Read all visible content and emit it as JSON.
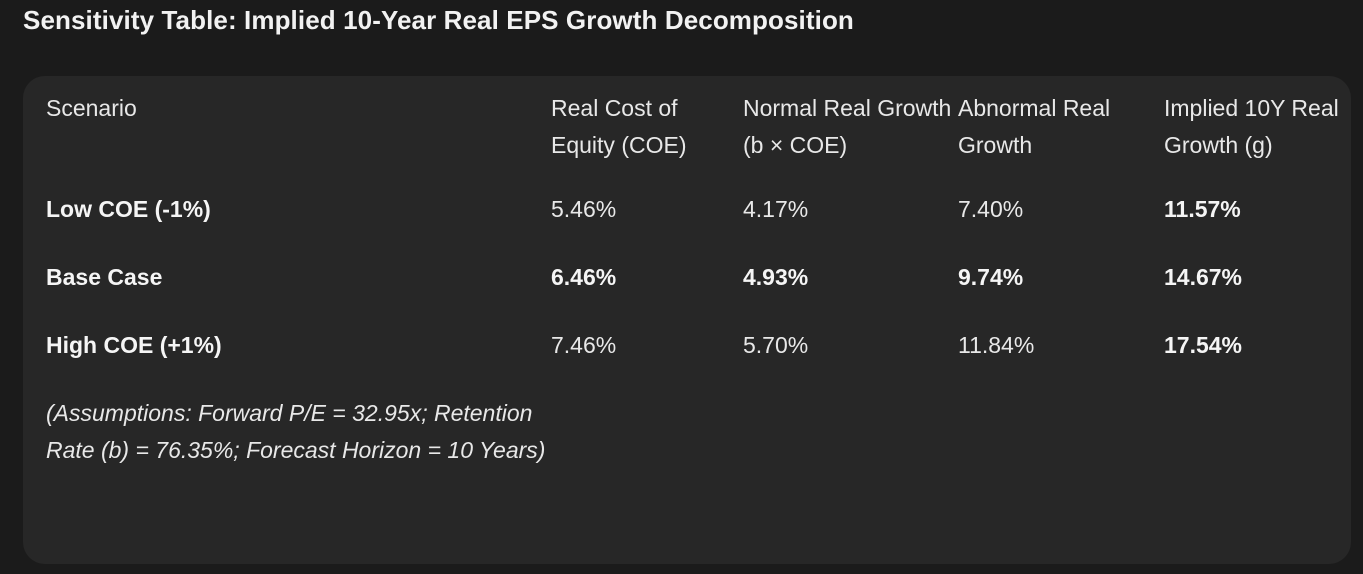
{
  "title": "Sensitivity Table: Implied 10-Year Real EPS Growth Decomposition",
  "table": {
    "headers": [
      "Scenario",
      "Real Cost of Equity (COE)",
      "Normal Real Growth (b × COE)",
      "Abnormal Real Growth",
      "Implied 10Y Real Growth (g)"
    ],
    "rows": [
      [
        "Low COE (-1%)",
        "5.46%",
        "4.17%",
        "7.40%",
        "11.57%"
      ],
      [
        "Base Case",
        "6.46%",
        "4.93%",
        "9.74%",
        "14.67%"
      ],
      [
        "High COE (+1%)",
        "7.46%",
        "5.70%",
        "11.84%",
        "17.54%"
      ]
    ],
    "note": "(Assumptions: Forward P/E = 32.95x; Retention Rate (b) = 76.35%; Forecast Horizon = 10 Years)"
  },
  "colors": {
    "background": "#1b1b1b",
    "card": "#272727",
    "text": "#e8e8e8"
  }
}
